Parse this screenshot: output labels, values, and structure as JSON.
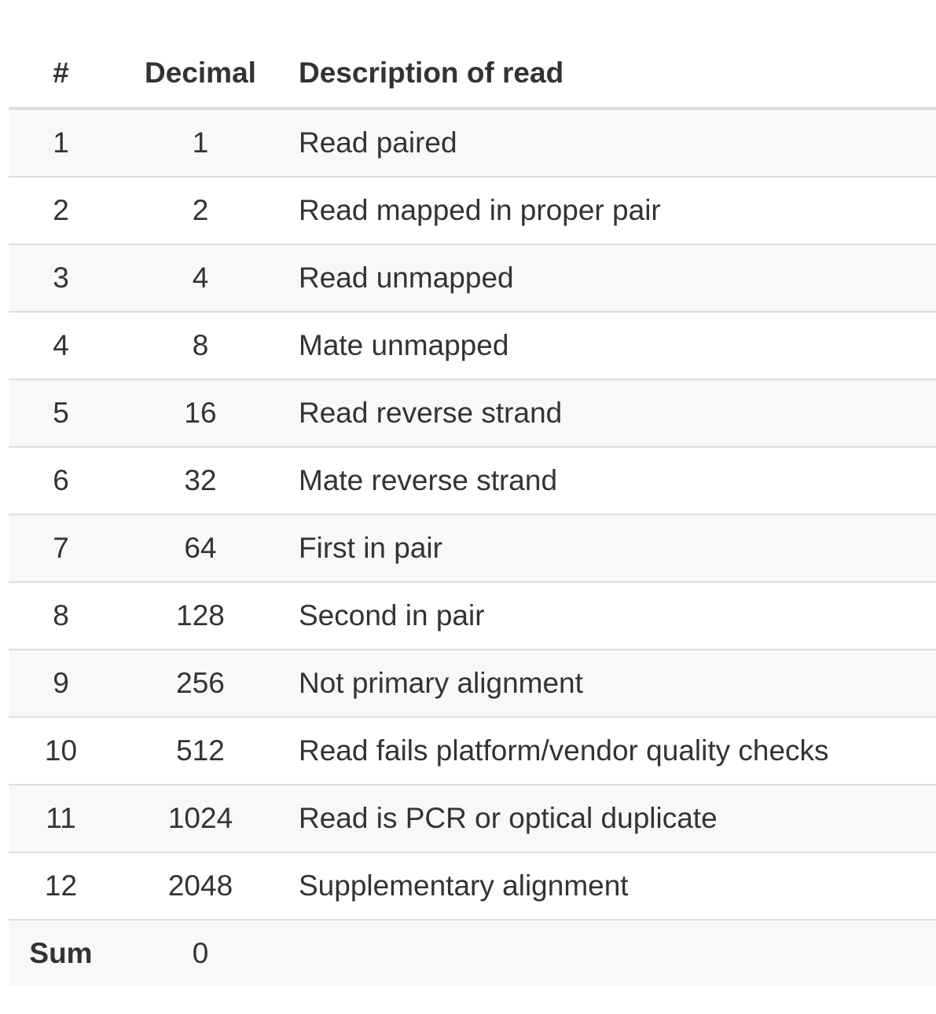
{
  "table": {
    "headers": {
      "num": "#",
      "decimal": "Decimal",
      "description": "Description of read"
    },
    "rows": [
      {
        "num": "1",
        "decimal": "1",
        "description": "Read paired"
      },
      {
        "num": "2",
        "decimal": "2",
        "description": "Read mapped in proper pair"
      },
      {
        "num": "3",
        "decimal": "4",
        "description": "Read unmapped"
      },
      {
        "num": "4",
        "decimal": "8",
        "description": "Mate unmapped"
      },
      {
        "num": "5",
        "decimal": "16",
        "description": "Read reverse strand"
      },
      {
        "num": "6",
        "decimal": "32",
        "description": "Mate reverse strand"
      },
      {
        "num": "7",
        "decimal": "64",
        "description": "First in pair"
      },
      {
        "num": "8",
        "decimal": "128",
        "description": "Second in pair"
      },
      {
        "num": "9",
        "decimal": "256",
        "description": "Not primary alignment"
      },
      {
        "num": "10",
        "decimal": "512",
        "description": "Read fails platform/vendor quality checks"
      },
      {
        "num": "11",
        "decimal": "1024",
        "description": "Read is PCR or optical duplicate"
      },
      {
        "num": "12",
        "decimal": "2048",
        "description": "Supplementary alignment"
      }
    ],
    "sum": {
      "label": "Sum",
      "value": "0"
    }
  },
  "colors": {
    "text": "#333333",
    "row_stripe": "#f8f8f8",
    "border": "#dddddd"
  }
}
